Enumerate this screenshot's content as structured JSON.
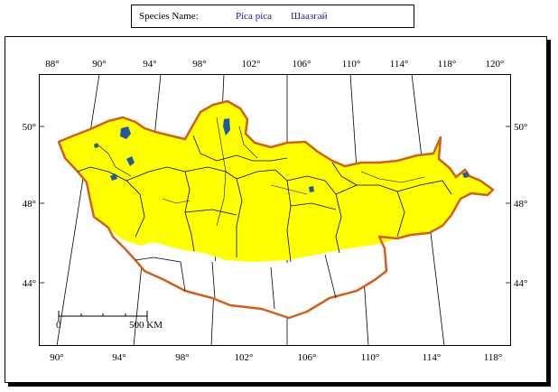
{
  "header": {
    "species_label": "Species Name:",
    "species_name": "Pica pica",
    "local_name": "Шаазгай"
  },
  "map": {
    "top_ticks": [
      "88°",
      "90°",
      "94°",
      "98°",
      "102°",
      "106°",
      "110°",
      "114°",
      "118°",
      "120°"
    ],
    "bottom_ticks": [
      "90°",
      "94°",
      "98°",
      "102°",
      "106°",
      "110°",
      "114°",
      "118°"
    ],
    "left_ticks": [
      "50°",
      "48°",
      "44°"
    ],
    "right_ticks": [
      "50°",
      "48°",
      "44°"
    ],
    "scale_start": "0",
    "scale_end": "500 KM",
    "colors": {
      "range_fill": "#ffff00",
      "border": "#d2601a",
      "water": "#1f5aa8",
      "lines": "#000000"
    }
  }
}
